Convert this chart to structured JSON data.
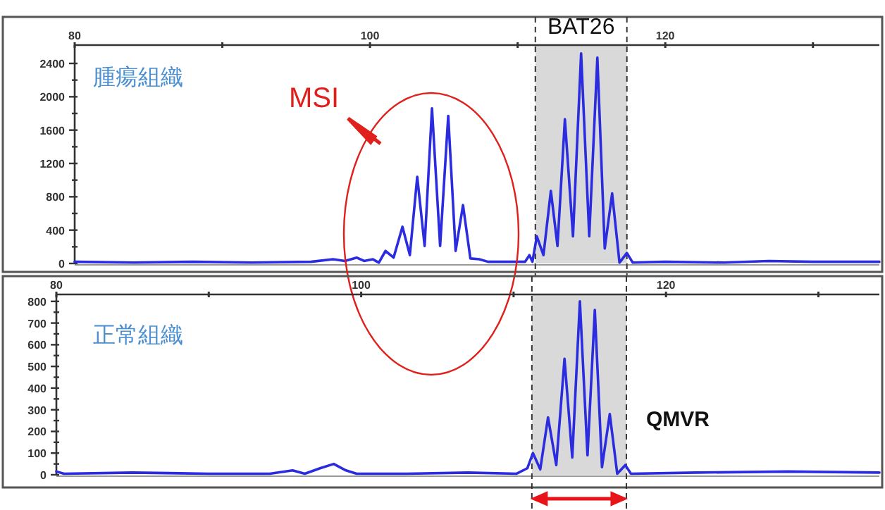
{
  "chart_data": [
    {
      "type": "line",
      "title": "腫瘍組織",
      "annotations": [
        "MSI"
      ],
      "xlim": [
        80,
        134.5
      ],
      "xticks": [
        80,
        {
          "value": 90,
          "label": null
        },
        100,
        {
          "value": 110,
          "label": null
        },
        120,
        {
          "value": 130,
          "label": null
        }
      ],
      "ylim": [
        0,
        2620
      ],
      "yticks": [
        0,
        {
          "value": 200,
          "label": null
        },
        400,
        {
          "value": 600,
          "label": null
        },
        800,
        {
          "value": 1000,
          "label": null
        },
        1200,
        {
          "value": 1400,
          "label": null
        },
        1600,
        {
          "value": 1800,
          "label": null
        },
        2000,
        {
          "value": 2200,
          "label": null
        },
        2400
      ],
      "bands": [
        {
          "axis": "x",
          "from": 111.2,
          "to": 117.4,
          "label": "BAT26",
          "color": "#d9d9d9"
        }
      ],
      "ref_lines": [
        {
          "axis": "x",
          "value": 111.2,
          "color": "#333333",
          "line_style": "dashed"
        },
        {
          "axis": "x",
          "value": 117.4,
          "color": "#333333",
          "line_style": "dashed"
        }
      ],
      "grid": false,
      "marker": "none",
      "line_style": "solid",
      "series": [
        {
          "color": "#2b2be0",
          "x": [
            80,
            84,
            88,
            92,
            96,
            97.5,
            98.3,
            99.1,
            99.6,
            100.2,
            100.6,
            101.05,
            101.6,
            102.2,
            102.7,
            103.2,
            103.7,
            104.2,
            104.75,
            105.3,
            105.8,
            106.3,
            106.8,
            107.4,
            108,
            110.5,
            110.8,
            111.0,
            111.3,
            111.75,
            112.25,
            112.7,
            113.2,
            113.75,
            114.3,
            114.85,
            115.4,
            115.9,
            116.4,
            116.9,
            117.4,
            117.8,
            120,
            124,
            127,
            130,
            134.5
          ],
          "values": [
            20,
            10,
            20,
            10,
            20,
            50,
            30,
            70,
            30,
            50,
            10,
            150,
            70,
            440,
            100,
            1040,
            210,
            1860,
            210,
            1770,
            150,
            700,
            60,
            50,
            20,
            20,
            100,
            20,
            325,
            100,
            870,
            210,
            1730,
            325,
            2520,
            325,
            2470,
            180,
            840,
            10,
            125,
            10,
            20,
            10,
            30,
            20,
            20
          ]
        }
      ]
    },
    {
      "type": "line",
      "title": "正常組織",
      "xlim": [
        80,
        134
      ],
      "xticks": [
        80,
        {
          "value": 90,
          "label": null
        },
        100,
        {
          "value": 110,
          "label": null
        },
        120,
        {
          "value": 130,
          "label": null
        }
      ],
      "ylim": [
        0,
        832
      ],
      "yticks": [
        0,
        {
          "value": 50,
          "label": null
        },
        100,
        {
          "value": 150,
          "label": null
        },
        200,
        {
          "value": 250,
          "label": null
        },
        300,
        {
          "value": 350,
          "label": null
        },
        400,
        {
          "value": 450,
          "label": null
        },
        500,
        {
          "value": 550,
          "label": null
        },
        600,
        {
          "value": 650,
          "label": null
        },
        700,
        {
          "value": 750,
          "label": null
        },
        800
      ],
      "bands": [
        {
          "axis": "x",
          "from": 111.2,
          "to": 117.4,
          "label": "QMVR",
          "color": "#d9d9d9"
        }
      ],
      "ref_lines": [
        {
          "axis": "x",
          "value": 111.2,
          "color": "#333333",
          "line_style": "dashed"
        },
        {
          "axis": "x",
          "value": 117.4,
          "color": "#333333",
          "line_style": "dashed"
        }
      ],
      "grid": false,
      "marker": "none",
      "line_style": "solid",
      "series": [
        {
          "color": "#2b2be0",
          "x": [
            80,
            80.5,
            85,
            90,
            94,
            95.5,
            96.3,
            97.3,
            98.2,
            99,
            99.7,
            103,
            107,
            110.2,
            110.9,
            111.27,
            111.75,
            112.26,
            112.8,
            113.34,
            113.85,
            114.35,
            114.85,
            115.33,
            115.8,
            116.31,
            116.8,
            117.33,
            117.7,
            122,
            128,
            134
          ],
          "values": [
            15,
            5,
            10,
            5,
            5,
            20,
            5,
            30,
            50,
            20,
            5,
            5,
            10,
            5,
            30,
            100,
            25,
            265,
            45,
            535,
            80,
            800,
            90,
            760,
            35,
            280,
            5,
            45,
            5,
            10,
            15,
            10
          ]
        }
      ]
    }
  ]
}
